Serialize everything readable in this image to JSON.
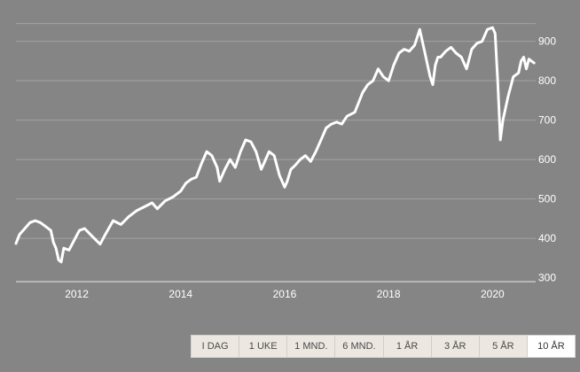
{
  "chart_data": {
    "type": "line",
    "title": "",
    "xlabel": "",
    "ylabel": "",
    "x_ticks": [
      "2012",
      "2014",
      "2016",
      "2018",
      "2020"
    ],
    "y_ticks": [
      "300",
      "400",
      "500",
      "600",
      "700",
      "800",
      "900"
    ],
    "xlim": [
      2010.83,
      2020.83
    ],
    "ylim": [
      290,
      960
    ],
    "grid": true,
    "legend": "none",
    "line_color": "#ffffff",
    "series": [
      {
        "x": [
          2010.83,
          2010.9,
          2011.0,
          2011.1,
          2011.2,
          2011.3,
          2011.4,
          2011.5,
          2011.55,
          2011.6,
          2011.65,
          2011.7,
          2011.75,
          2011.85,
          2011.95,
          2012.05,
          2012.15,
          2012.3,
          2012.45,
          2012.55,
          2012.7,
          2012.85,
          2013.0,
          2013.15,
          2013.3,
          2013.45,
          2013.55,
          2013.7,
          2013.85,
          2014.0,
          2014.1,
          2014.2,
          2014.3,
          2014.4,
          2014.5,
          2014.6,
          2014.7,
          2014.75,
          2014.85,
          2014.95,
          2015.05,
          2015.15,
          2015.25,
          2015.35,
          2015.45,
          2015.55,
          2015.6,
          2015.7,
          2015.8,
          2015.9,
          2016.0,
          2016.05,
          2016.12,
          2016.2,
          2016.3,
          2016.4,
          2016.5,
          2016.6,
          2016.7,
          2016.8,
          2016.9,
          2017.0,
          2017.1,
          2017.2,
          2017.35,
          2017.5,
          2017.6,
          2017.7,
          2017.8,
          2017.9,
          2018.0,
          2018.1,
          2018.2,
          2018.3,
          2018.4,
          2018.5,
          2018.6,
          2018.7,
          2018.75,
          2018.8,
          2018.85,
          2018.9,
          2018.95,
          2019.0,
          2019.1,
          2019.2,
          2019.3,
          2019.4,
          2019.5,
          2019.6,
          2019.7,
          2019.8,
          2019.9,
          2020.0,
          2020.05,
          2020.1,
          2020.15,
          2020.2,
          2020.25,
          2020.3,
          2020.4,
          2020.5,
          2020.55,
          2020.6,
          2020.65,
          2020.7,
          2020.75,
          2020.8
        ],
        "y": [
          387,
          410,
          425,
          440,
          445,
          440,
          430,
          420,
          390,
          375,
          345,
          340,
          375,
          370,
          395,
          420,
          425,
          405,
          385,
          410,
          445,
          435,
          455,
          470,
          480,
          490,
          475,
          495,
          505,
          520,
          540,
          550,
          555,
          590,
          620,
          610,
          580,
          545,
          575,
          600,
          580,
          620,
          650,
          645,
          620,
          575,
          590,
          620,
          610,
          560,
          530,
          545,
          575,
          585,
          600,
          610,
          595,
          620,
          650,
          680,
          690,
          695,
          690,
          710,
          720,
          770,
          790,
          800,
          830,
          810,
          800,
          840,
          870,
          880,
          875,
          890,
          930,
          870,
          840,
          810,
          790,
          840,
          860,
          860,
          875,
          885,
          870,
          860,
          830,
          880,
          895,
          900,
          930,
          935,
          920,
          800,
          650,
          700,
          730,
          760,
          810,
          820,
          850,
          860,
          830,
          855,
          850,
          845
        ]
      }
    ]
  },
  "range_buttons": {
    "day": "I DAG",
    "week": "1 UKE",
    "month": "1 MND.",
    "six_month": "6 MND.",
    "year": "1 ÅR",
    "three_year": "3 ÅR",
    "five_year": "5 ÅR",
    "ten_year": "10 ÅR"
  }
}
